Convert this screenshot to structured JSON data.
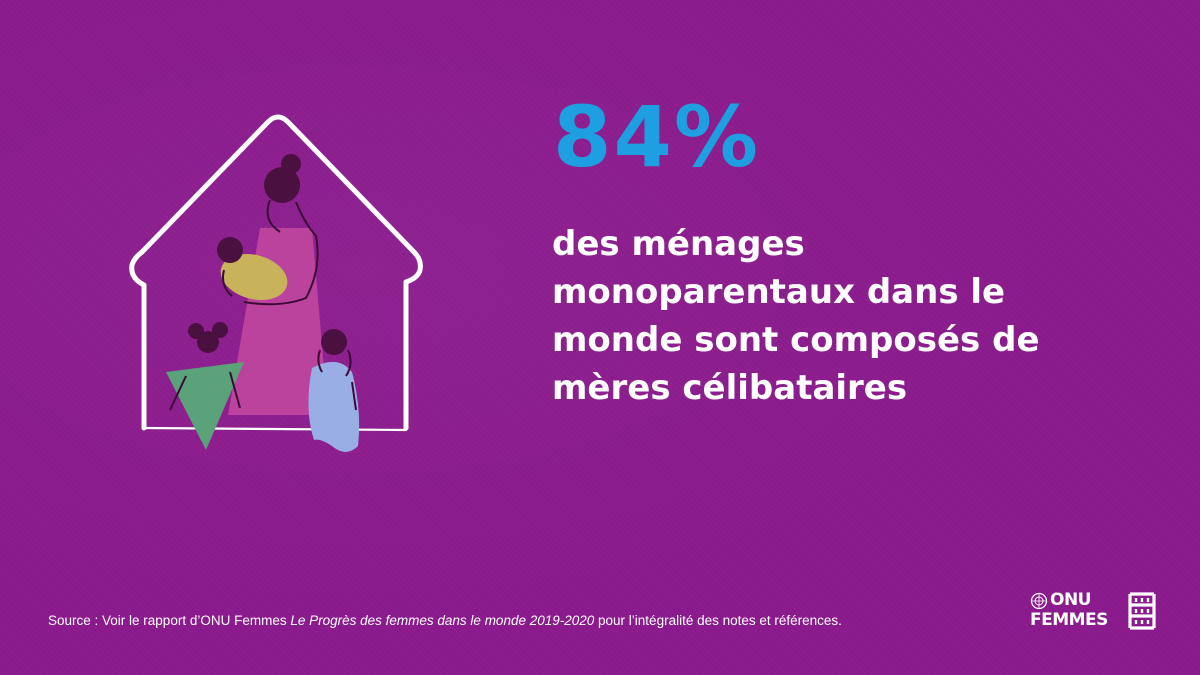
{
  "stat": {
    "value": "84%"
  },
  "statement": {
    "lines": [
      "des ménages",
      "monoparentaux dans le",
      "monde sont composés de",
      "mères célibataires"
    ]
  },
  "source": {
    "prefix": "Source : Voir le rapport d’ONU Femmes ",
    "title": "Le Progrès des femmes dans le monde 2019-2020",
    "suffix": " pour l’intégralité des notes et références."
  },
  "logo": {
    "line1": "ONU",
    "line2": "FEMMES"
  },
  "icons": {
    "house": "house-icon",
    "mother": "mother-with-baby-figure",
    "children": "children-figures",
    "un": "un-emblem-icon"
  },
  "colors": {
    "background": "#8b1a8d",
    "stat": "#1d9fe1",
    "text": "#ffffff",
    "mother_dress": "#c0469e",
    "baby": "#c9b35a",
    "girl_dress": "#5aa27a",
    "child_dress": "#9aaee6",
    "hair": "#4a1040"
  }
}
